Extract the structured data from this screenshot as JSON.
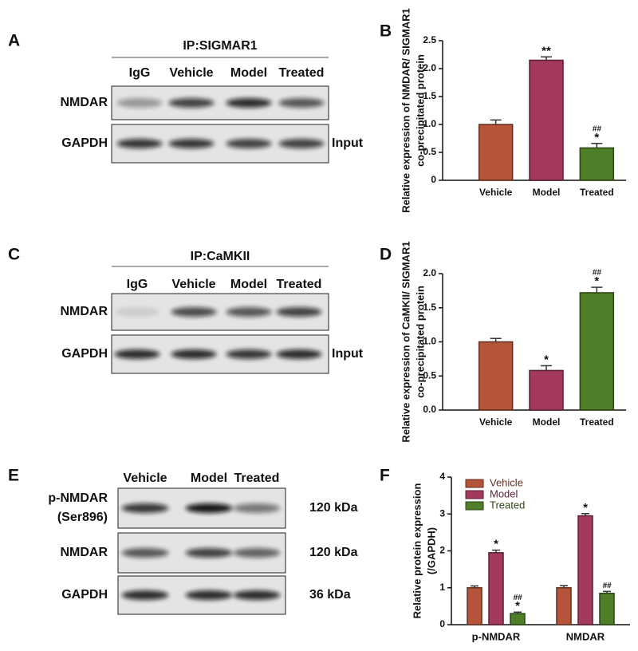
{
  "panels": [
    "A",
    "B",
    "C",
    "D",
    "E",
    "F"
  ],
  "blots": [
    {
      "title": "IP:SIGMAR1",
      "lanes": [
        "IgG",
        "Vehicle",
        "Model",
        "Treated"
      ],
      "rows": [
        [
          "NMDAR"
        ],
        [
          "GAPDH"
        ]
      ],
      "side": [
        "Input"
      ]
    },
    {
      "title": "IP:CaMKII",
      "lanes": [
        "IgG",
        "Vehicle",
        "Model",
        "Treated"
      ],
      "rows": [
        [
          "NMDAR"
        ],
        [
          "GAPDH"
        ]
      ],
      "side": [
        "Input"
      ]
    },
    {
      "lanes": [
        "Vehicle",
        "Model",
        "Treated"
      ],
      "rows": [
        [
          "p-NMDAR",
          "(Ser896)"
        ],
        [
          "NMDAR"
        ],
        [
          "GAPDH"
        ]
      ],
      "side": [
        "120 kDa",
        "120 kDa",
        "36 kDa"
      ]
    }
  ],
  "chart_data": [
    {
      "type": "bar",
      "y_label": [
        "Relative expression of NMDAR/ SIGMAR1",
        "co-precipitated protein"
      ],
      "categories": [
        "Vehicle",
        "Model",
        "Treated"
      ],
      "values": [
        1.0,
        2.15,
        0.58
      ],
      "errors": [
        0.08,
        0.06,
        0.08
      ],
      "colors": [
        "#b4553a",
        "#a3395e",
        "#4f7e28"
      ],
      "annotations": [
        [],
        [
          "**"
        ],
        [
          "##",
          "*"
        ]
      ],
      "ylim": [
        0,
        2.5
      ],
      "yticks": [
        0,
        {
          "value": 0.5,
          "label": "0.5"
        },
        {
          "value": 1,
          "label": "1.0"
        },
        {
          "value": 1.5,
          "label": "1.5"
        },
        {
          "value": 2,
          "label": "2.0"
        },
        {
          "value": 2.5,
          "label": "2.5"
        }
      ]
    },
    {
      "type": "bar",
      "y_label": [
        "Relative expression of CaMKII/ SIGMAR1",
        "co-precipitated protein"
      ],
      "categories": [
        "Vehicle",
        "Model",
        "Treated"
      ],
      "values": [
        1.0,
        0.58,
        1.72
      ],
      "errors": [
        0.05,
        0.07,
        0.08
      ],
      "colors": [
        "#b4553a",
        "#a3395e",
        "#4f7e28"
      ],
      "annotations": [
        [],
        [
          "*"
        ],
        [
          "##",
          "*"
        ]
      ],
      "ylim": [
        0,
        2
      ],
      "yticks": [
        {
          "value": 0,
          "label": "0.0"
        },
        {
          "value": 0.5,
          "label": "0.5"
        },
        {
          "value": 1,
          "label": "1.0"
        },
        {
          "value": 1.5,
          "label": "1.5"
        },
        {
          "value": 2,
          "label": "2.0"
        }
      ]
    },
    {
      "type": "grouped_bar",
      "y_label": [
        "Relative protein expression",
        "(/GAPDH)"
      ],
      "categories": [
        "p-NMDAR",
        "NMDAR"
      ],
      "series": [
        {
          "name": "Vehicle",
          "color": "#b4553a",
          "values": [
            1.0,
            1.0
          ],
          "errors": [
            0.05,
            0.06
          ],
          "annotations": [
            [],
            []
          ]
        },
        {
          "name": "Model",
          "color": "#a3395e",
          "values": [
            1.95,
            2.95
          ],
          "errors": [
            0.07,
            0.06
          ],
          "annotations": [
            [
              "*"
            ],
            [
              "*"
            ]
          ]
        },
        {
          "name": "Treated",
          "color": "#4f7e28",
          "values": [
            0.3,
            0.85
          ],
          "errors": [
            0.04,
            0.05
          ],
          "annotations": [
            [
              "##",
              "*"
            ],
            [
              "##"
            ]
          ]
        }
      ],
      "ylim": [
        0,
        4
      ],
      "yticks": [
        0,
        1,
        2,
        3,
        4
      ],
      "legend": "top-left"
    }
  ]
}
